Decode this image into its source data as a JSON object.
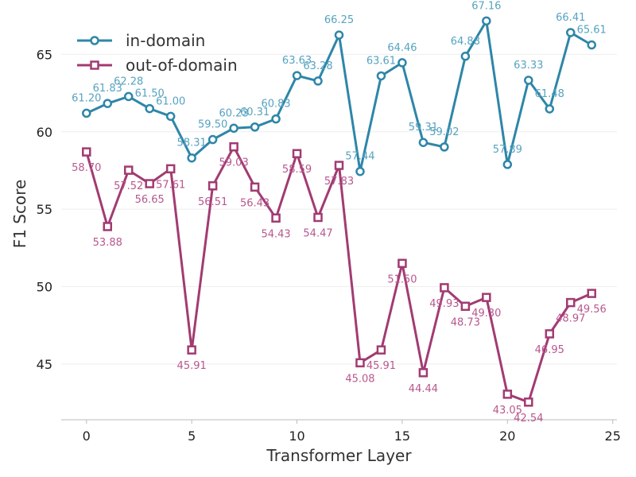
{
  "chart_data": {
    "type": "line",
    "title": "",
    "xlabel": "Transformer Layer",
    "ylabel": "F1 Score",
    "xlim": [
      -1.2,
      25.2
    ],
    "ylim": [
      41.4,
      68.0
    ],
    "xticks": [
      0,
      5,
      10,
      15,
      20,
      25
    ],
    "yticks": [
      45,
      50,
      55,
      60,
      65
    ],
    "grid": "horizontal",
    "legend_position": "top-left",
    "x": [
      0,
      1,
      2,
      3,
      4,
      5,
      6,
      7,
      8,
      9,
      10,
      11,
      12,
      13,
      14,
      15,
      16,
      17,
      18,
      19,
      20,
      21,
      22,
      23,
      24
    ],
    "series": [
      {
        "name": "in-domain",
        "color": "#2e86a8",
        "label_color": "#56a3c0",
        "marker": "circle",
        "label_position": "above",
        "values": [
          61.2,
          61.83,
          62.28,
          61.5,
          61.0,
          58.31,
          59.5,
          60.23,
          60.31,
          60.83,
          63.63,
          63.28,
          66.25,
          57.44,
          63.61,
          64.46,
          59.31,
          59.02,
          64.88,
          67.16,
          57.89,
          63.33,
          61.48,
          66.41,
          65.61
        ],
        "labels": [
          "61.20",
          "61.83",
          "62.28",
          "61.50",
          "61.00",
          "58.31",
          "59.50",
          "60.23",
          "60.31",
          "60.83",
          "63.63",
          "63.28",
          "66.25",
          "57.44",
          "63.61",
          "64.46",
          "59.31",
          "59.02",
          "64.88",
          "67.16",
          "57.89",
          "63.33",
          "61.48",
          "66.41",
          "65.61"
        ]
      },
      {
        "name": "out-of-domain",
        "color": "#a23b72",
        "label_color": "#b8578f",
        "marker": "square",
        "label_position": "below",
        "values": [
          58.7,
          53.88,
          57.52,
          56.65,
          57.61,
          45.91,
          56.51,
          59.03,
          56.43,
          54.43,
          58.59,
          54.47,
          57.83,
          45.08,
          45.91,
          51.5,
          44.44,
          49.93,
          48.73,
          49.3,
          43.05,
          42.54,
          46.95,
          48.97,
          49.56
        ],
        "labels": [
          "58.70",
          "53.88",
          "57.52",
          "56.65",
          "57.61",
          "45.91",
          "56.51",
          "59.03",
          "56.43",
          "54.43",
          "58.59",
          "54.47",
          "57.83",
          "45.08",
          "45.91",
          "51.50",
          "44.44",
          "49.93",
          "48.73",
          "49.30",
          "43.05",
          "42.54",
          "46.95",
          "48.97",
          "49.56"
        ]
      }
    ]
  }
}
